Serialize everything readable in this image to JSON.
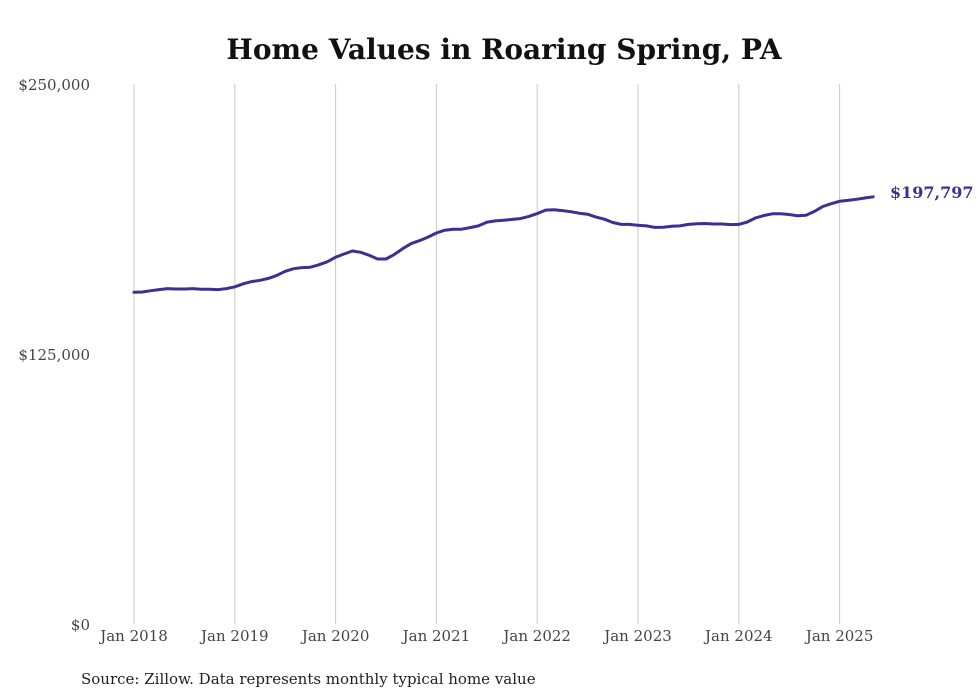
{
  "chart_data": {
    "type": "line",
    "title": "Home Values in Roaring Spring, PA",
    "source": "Source: Zillow. Data represents monthly typical home value",
    "end_label": "$197,797",
    "line_color": "#3a3192",
    "grid_color": "#c8c8c8",
    "ylim": [
      0,
      250000
    ],
    "y_ticks": [
      {
        "value": 0,
        "label": "$0"
      },
      {
        "value": 125000,
        "label": "$125,000"
      },
      {
        "value": 250000,
        "label": "$250,000"
      }
    ],
    "x_ticks": [
      {
        "value": "2018-01",
        "label": "Jan 2018"
      },
      {
        "value": "2019-01",
        "label": "Jan 2019"
      },
      {
        "value": "2020-01",
        "label": "Jan 2020"
      },
      {
        "value": "2021-01",
        "label": "Jan 2021"
      },
      {
        "value": "2022-01",
        "label": "Jan 2022"
      },
      {
        "value": "2023-01",
        "label": "Jan 2023"
      },
      {
        "value": "2024-01",
        "label": "Jan 2024"
      },
      {
        "value": "2025-01",
        "label": "Jan 2025"
      }
    ],
    "x_range": [
      "2018-01",
      "2025-05"
    ],
    "x": [
      "2018-01",
      "2018-02",
      "2018-03",
      "2018-04",
      "2018-05",
      "2018-06",
      "2018-07",
      "2018-08",
      "2018-09",
      "2018-10",
      "2018-11",
      "2018-12",
      "2019-01",
      "2019-02",
      "2019-03",
      "2019-04",
      "2019-05",
      "2019-06",
      "2019-07",
      "2019-08",
      "2019-09",
      "2019-10",
      "2019-11",
      "2019-12",
      "2020-01",
      "2020-02",
      "2020-03",
      "2020-04",
      "2020-05",
      "2020-06",
      "2020-07",
      "2020-08",
      "2020-09",
      "2020-10",
      "2020-11",
      "2020-12",
      "2021-01",
      "2021-02",
      "2021-03",
      "2021-04",
      "2021-05",
      "2021-06",
      "2021-07",
      "2021-08",
      "2021-09",
      "2021-10",
      "2021-11",
      "2021-12",
      "2022-01",
      "2022-02",
      "2022-03",
      "2022-04",
      "2022-05",
      "2022-06",
      "2022-07",
      "2022-08",
      "2022-09",
      "2022-10",
      "2022-11",
      "2022-12",
      "2023-01",
      "2023-02",
      "2023-03",
      "2023-04",
      "2023-05",
      "2023-06",
      "2023-07",
      "2023-08",
      "2023-09",
      "2023-10",
      "2023-11",
      "2023-12",
      "2024-01",
      "2024-02",
      "2024-03",
      "2024-04",
      "2024-05",
      "2024-06",
      "2024-07",
      "2024-08",
      "2024-09",
      "2024-10",
      "2024-11",
      "2024-12",
      "2025-01",
      "2025-02",
      "2025-03",
      "2025-04",
      "2025-05"
    ],
    "series": [
      {
        "values": [
          153600,
          153700,
          154300,
          154800,
          155300,
          155100,
          155100,
          155300,
          155000,
          155000,
          154800,
          155300,
          156100,
          157500,
          158500,
          159100,
          160000,
          161400,
          163300,
          164500,
          165000,
          165200,
          166300,
          167700,
          169800,
          171300,
          172700,
          172100,
          170700,
          169000,
          169000,
          171100,
          173800,
          176100,
          177500,
          179100,
          181000,
          182300,
          182800,
          182800,
          183500,
          184300,
          186000,
          186600,
          186900,
          187300,
          187700,
          188700,
          190000,
          191600,
          191800,
          191400,
          190900,
          190200,
          189700,
          188400,
          187400,
          185900,
          185000,
          185000,
          184600,
          184300,
          183600,
          183700,
          184100,
          184300,
          185000,
          185300,
          185400,
          185200,
          185200,
          184900,
          185000,
          186100,
          188000,
          189100,
          189900,
          189900,
          189600,
          189000,
          189200,
          191000,
          193300,
          194600,
          195700,
          196100,
          196600,
          197200,
          197797
        ]
      }
    ]
  }
}
